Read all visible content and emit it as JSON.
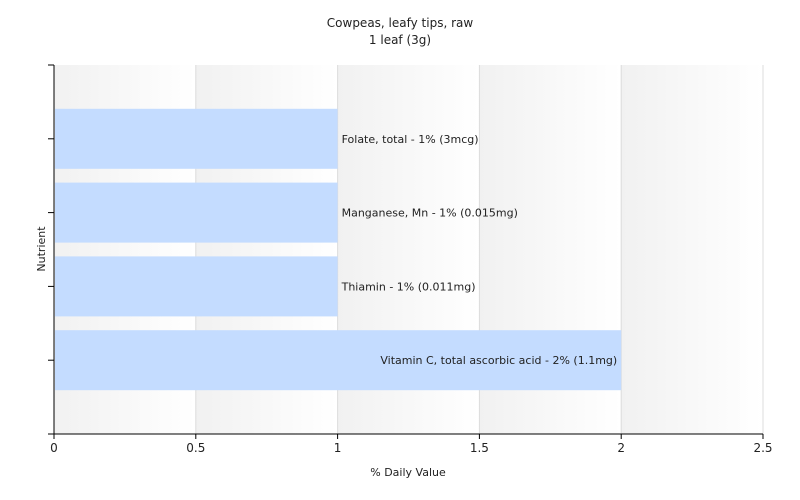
{
  "chart_data": {
    "type": "bar",
    "orientation": "horizontal",
    "title": "Cowpeas, leafy tips, raw",
    "subtitle": "1 leaf (3g)",
    "xlabel": "% Daily Value",
    "ylabel": "Nutrient",
    "xlim": [
      0,
      2.5
    ],
    "xticks": [
      "0",
      "0.5",
      "1",
      "1.5",
      "2",
      "2.5"
    ],
    "categories": [
      "Folate, total",
      "Manganese, Mn",
      "Thiamin",
      "Vitamin C, total ascorbic acid"
    ],
    "values": [
      1,
      1,
      1,
      2
    ],
    "bar_labels": [
      "Folate, total - 1% (3mcg)",
      "Manganese, Mn - 1% (0.015mg)",
      "Thiamin - 1% (0.011mg)",
      "Vitamin C, total ascorbic acid - 2% (1.1mg)"
    ],
    "bar_color": "#c4dcff",
    "grid": true
  }
}
